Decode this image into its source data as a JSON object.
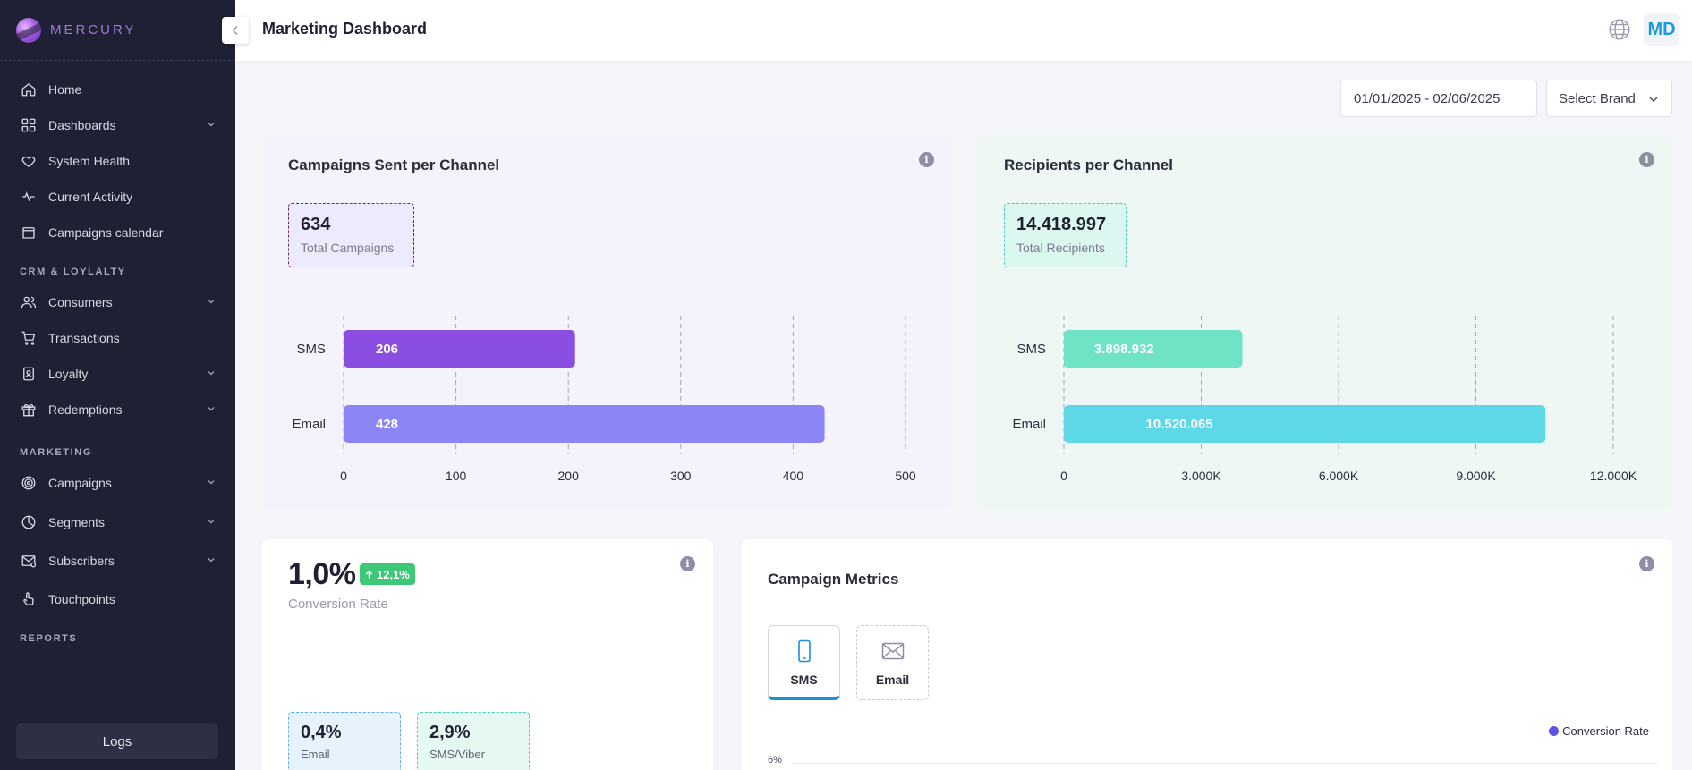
{
  "app": {
    "name": "MERCURY"
  },
  "sidebar": {
    "items_main": [
      {
        "label": "Home",
        "icon": "home-icon",
        "has_submenu": false
      },
      {
        "label": "Dashboards",
        "icon": "grid-icon",
        "has_submenu": true
      },
      {
        "label": "System Health",
        "icon": "heart-icon",
        "has_submenu": false
      },
      {
        "label": "Current Activity",
        "icon": "activity-icon",
        "has_submenu": false
      },
      {
        "label": "Campaigns calendar",
        "icon": "calendar-icon",
        "has_submenu": false
      }
    ],
    "section_crm": "CRM & LOYLALTY",
    "items_crm": [
      {
        "label": "Consumers",
        "icon": "users-icon",
        "has_submenu": true
      },
      {
        "label": "Transactions",
        "icon": "cart-icon",
        "has_submenu": false
      },
      {
        "label": "Loyalty",
        "icon": "badge-icon",
        "has_submenu": true
      },
      {
        "label": "Redemptions",
        "icon": "gift-icon",
        "has_submenu": true
      }
    ],
    "section_marketing": "MARKETING",
    "items_marketing": [
      {
        "label": "Campaigns",
        "icon": "target-icon",
        "has_submenu": true
      },
      {
        "label": "Segments",
        "icon": "pie-icon",
        "has_submenu": true
      },
      {
        "label": "Subscribers",
        "icon": "mail-check-icon",
        "has_submenu": true
      },
      {
        "label": "Touchpoints",
        "icon": "pointer-icon",
        "has_submenu": false
      }
    ],
    "section_reports": "REPORTS",
    "logs_label": "Logs"
  },
  "header": {
    "title": "Marketing Dashboard",
    "avatar_initials": "MD"
  },
  "filters": {
    "date_range": "01/01/2025 - 02/06/2025",
    "brand_placeholder": "Select Brand"
  },
  "campaigns_card": {
    "title": "Campaigns Sent per Channel",
    "total_value": "634",
    "total_label": "Total Campaigns"
  },
  "recipients_card": {
    "title": "Recipients per Channel",
    "total_value": "14.418.997",
    "total_label": "Total Recipients"
  },
  "conversion_card": {
    "value": "1,0%",
    "change": "12,1%",
    "label": "Conversion Rate",
    "email_value": "0,4%",
    "email_label": "Email",
    "sms_value": "2,9%",
    "sms_label": "SMS/Viber"
  },
  "metrics_card": {
    "title": "Campaign Metrics",
    "tabs": [
      {
        "label": "SMS",
        "active": true
      },
      {
        "label": "Email",
        "active": false
      }
    ],
    "legend": "Conversion Rate",
    "y_tick_top": "6%"
  },
  "chart_data": [
    {
      "type": "bar",
      "orientation": "horizontal",
      "title": "Campaigns Sent per Channel",
      "categories": [
        "SMS",
        "Email"
      ],
      "values": [
        206,
        428
      ],
      "value_labels": [
        "206",
        "428"
      ],
      "colors": [
        "#8a4ee0",
        "#8b85f5"
      ],
      "xlim": [
        0,
        500
      ],
      "xticks": [
        "0",
        "100",
        "200",
        "300",
        "400",
        "500"
      ],
      "tick_values": [
        0,
        100,
        200,
        300,
        400,
        500
      ],
      "grid": "dashed-vertical"
    },
    {
      "type": "bar",
      "orientation": "horizontal",
      "title": "Recipients per Channel",
      "categories": [
        "SMS",
        "Email"
      ],
      "values": [
        3898932,
        10520065
      ],
      "value_labels": [
        "3.898.932",
        "10.520.065"
      ],
      "colors": [
        "#6ee3c6",
        "#5ed8e6"
      ],
      "xlim": [
        0,
        12000000
      ],
      "xticks": [
        "0",
        "3.000K",
        "6.000K",
        "9.000K",
        "12.000K"
      ],
      "tick_values": [
        0,
        3000000,
        6000000,
        9000000,
        12000000
      ],
      "grid": "dashed-vertical"
    }
  ]
}
